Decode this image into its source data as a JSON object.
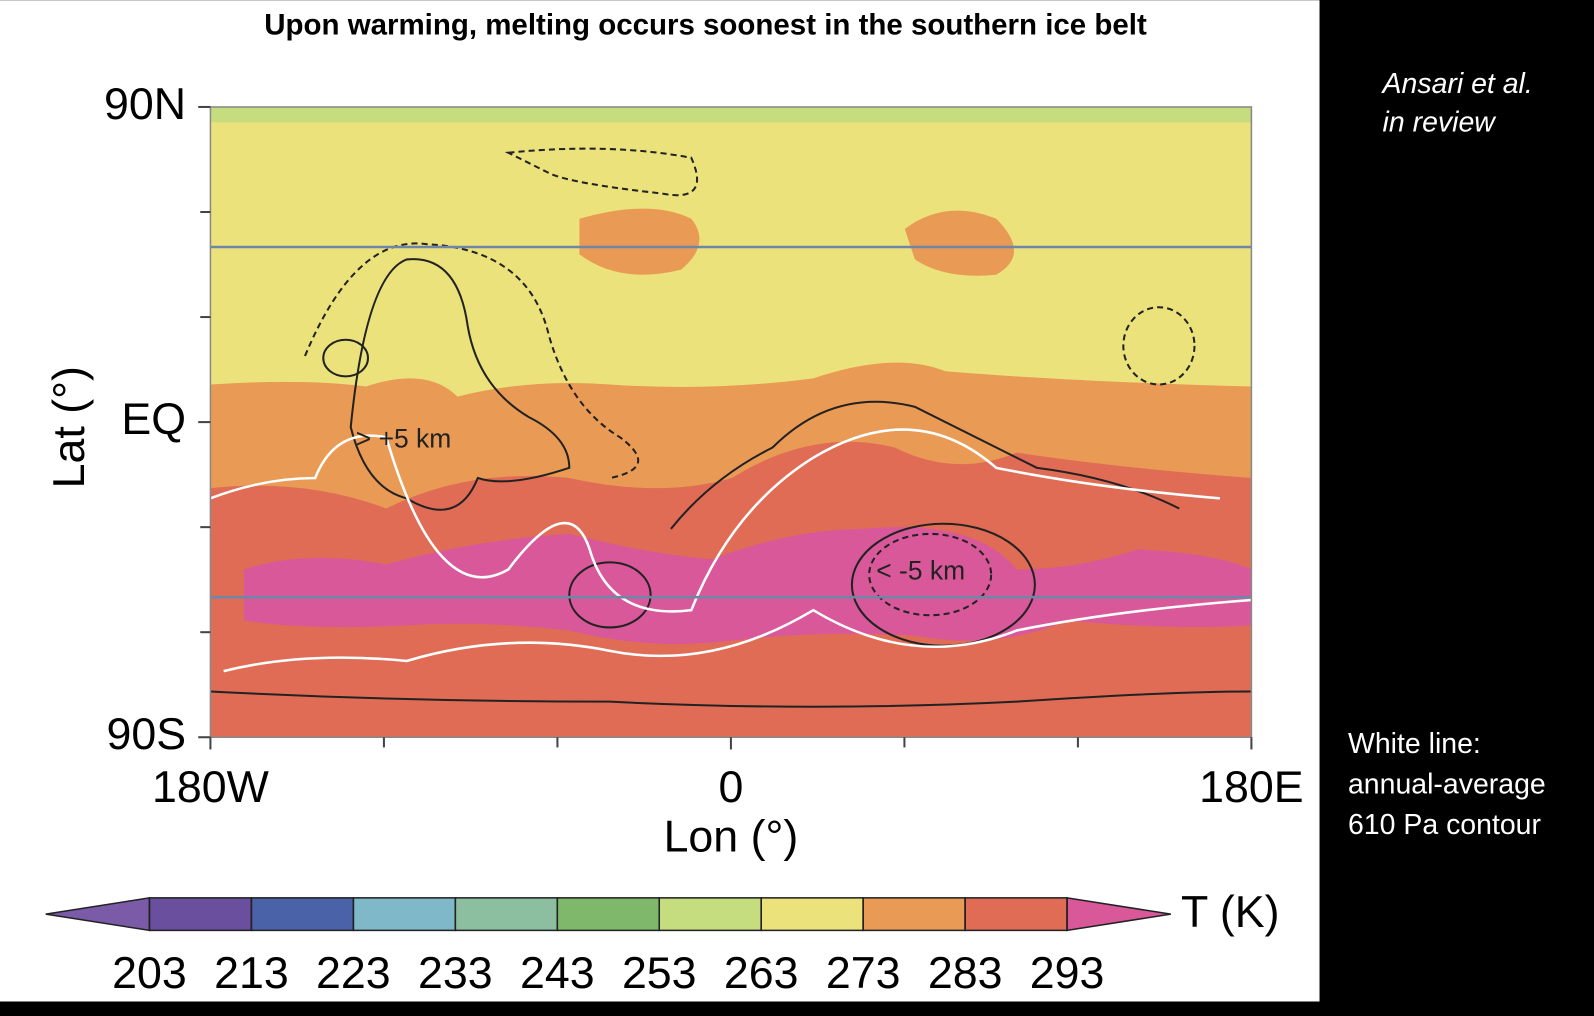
{
  "chart_data": {
    "type": "contourf",
    "title": "Upon warming, melting occurs soonest in the southern ice belt",
    "xlabel": "Lon (°)",
    "ylabel": "Lat (°)",
    "xlim": [
      -180,
      180
    ],
    "xticks": [
      {
        "value": -180,
        "label": "180W"
      },
      0,
      {
        "value": 180,
        "label": "180E"
      }
    ],
    "xminorticks": [
      -120,
      -60,
      60,
      120
    ],
    "ylim": [
      -90,
      90
    ],
    "yticks": [
      {
        "value": 90,
        "label": "90N"
      },
      {
        "value": 0,
        "label": "EQ"
      },
      {
        "value": -90,
        "label": "90S"
      }
    ],
    "yminorticks": [
      60,
      30,
      -30,
      -60
    ],
    "reference_lats": [
      50,
      -50
    ],
    "reference_color": "#6f86a8",
    "colorbar_label": "T (K)",
    "levels": [
      203,
      213,
      223,
      233,
      243,
      253,
      263,
      273,
      283,
      293
    ],
    "colors": [
      "#7b5aa8",
      "#6a4f9e",
      "#4a62a8",
      "#7fb8c9",
      "#8bbfa0",
      "#7fb86a",
      "#c5dc7f",
      "#ebe27c",
      "#e99a55",
      "#e06c55",
      "#d8589a"
    ],
    "annotations": [
      "> +5 km",
      "< -5 km"
    ],
    "notes": [
      "Ansari et al.",
      "in review",
      "White line:",
      "annual-average",
      "610 Pa contour"
    ]
  }
}
